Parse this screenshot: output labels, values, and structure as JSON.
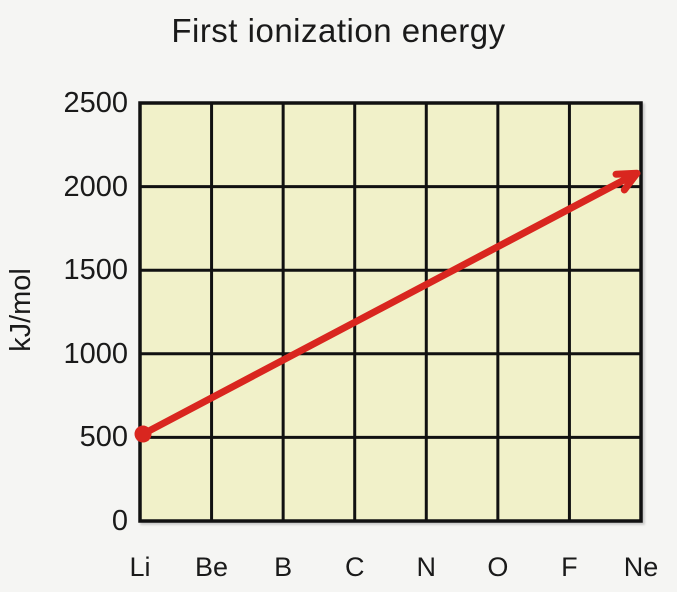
{
  "chart_data": {
    "type": "line",
    "title": "First ionization energy",
    "ylabel": "kJ/mol",
    "xlabel": "",
    "categories": [
      "Li",
      "Be",
      "B",
      "C",
      "N",
      "O",
      "F",
      "Ne"
    ],
    "y_ticks": [
      0,
      500,
      1000,
      1500,
      2000,
      2500
    ],
    "ylim": [
      0,
      2500
    ],
    "grid": true,
    "legend": "none",
    "plot_bg": "#f1f1c9",
    "grid_color": "#111111",
    "arrow_color": "#d9261f",
    "annotation": {
      "type": "trend-arrow",
      "description": "increasing trend arrow across period 2",
      "from": {
        "category": "Li",
        "value": 520
      },
      "to": {
        "category": "Ne",
        "value": 2080
      }
    }
  }
}
